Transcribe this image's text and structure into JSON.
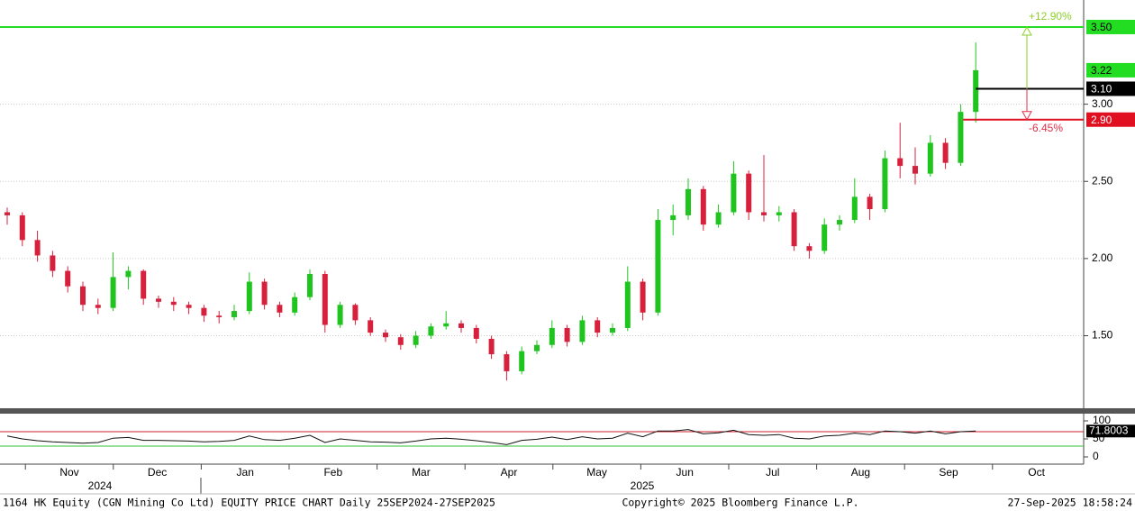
{
  "chart_data": {
    "type": "candlestick",
    "ylim": [
      1.03,
      3.675
    ],
    "yticks": [
      {
        "value": 1.5,
        "label": "1.50"
      },
      {
        "value": 2,
        "label": "2.00"
      },
      {
        "value": 2.5,
        "label": "2.50"
      },
      {
        "value": 3,
        "label": "3.00"
      }
    ],
    "up_color": "#1fc41f",
    "down_color": "#d6203c",
    "candles": [
      [
        2.3,
        2.33,
        2.22,
        2.28
      ],
      [
        2.28,
        2.3,
        2.08,
        2.12
      ],
      [
        2.12,
        2.18,
        1.98,
        2.02
      ],
      [
        2.02,
        2.05,
        1.88,
        1.92
      ],
      [
        1.92,
        1.95,
        1.78,
        1.82
      ],
      [
        1.82,
        1.85,
        1.66,
        1.7
      ],
      [
        1.7,
        1.74,
        1.64,
        1.68
      ],
      [
        1.68,
        2.04,
        1.66,
        1.88
      ],
      [
        1.88,
        1.95,
        1.8,
        1.92
      ],
      [
        1.92,
        1.93,
        1.7,
        1.74
      ],
      [
        1.74,
        1.76,
        1.68,
        1.72
      ],
      [
        1.72,
        1.75,
        1.66,
        1.7
      ],
      [
        1.7,
        1.72,
        1.64,
        1.68
      ],
      [
        1.68,
        1.7,
        1.59,
        1.63
      ],
      [
        1.63,
        1.66,
        1.58,
        1.62
      ],
      [
        1.62,
        1.7,
        1.6,
        1.66
      ],
      [
        1.66,
        1.91,
        1.64,
        1.85
      ],
      [
        1.85,
        1.87,
        1.67,
        1.7
      ],
      [
        1.7,
        1.72,
        1.62,
        1.65
      ],
      [
        1.65,
        1.78,
        1.63,
        1.75
      ],
      [
        1.75,
        1.93,
        1.73,
        1.9
      ],
      [
        1.9,
        1.92,
        1.52,
        1.57
      ],
      [
        1.57,
        1.72,
        1.55,
        1.7
      ],
      [
        1.7,
        1.71,
        1.57,
        1.6
      ],
      [
        1.6,
        1.62,
        1.5,
        1.52
      ],
      [
        1.52,
        1.54,
        1.46,
        1.49
      ],
      [
        1.49,
        1.51,
        1.41,
        1.44
      ],
      [
        1.44,
        1.53,
        1.42,
        1.5
      ],
      [
        1.5,
        1.58,
        1.48,
        1.56
      ],
      [
        1.56,
        1.66,
        1.54,
        1.58
      ],
      [
        1.58,
        1.6,
        1.52,
        1.55
      ],
      [
        1.55,
        1.57,
        1.45,
        1.48
      ],
      [
        1.48,
        1.5,
        1.35,
        1.38
      ],
      [
        1.38,
        1.4,
        1.21,
        1.27
      ],
      [
        1.27,
        1.43,
        1.25,
        1.4
      ],
      [
        1.4,
        1.47,
        1.38,
        1.44
      ],
      [
        1.44,
        1.6,
        1.42,
        1.55
      ],
      [
        1.55,
        1.57,
        1.43,
        1.46
      ],
      [
        1.46,
        1.63,
        1.44,
        1.6
      ],
      [
        1.6,
        1.62,
        1.49,
        1.52
      ],
      [
        1.52,
        1.58,
        1.5,
        1.55
      ],
      [
        1.55,
        1.95,
        1.53,
        1.85
      ],
      [
        1.85,
        1.87,
        1.6,
        1.65
      ],
      [
        1.65,
        2.32,
        1.63,
        2.25
      ],
      [
        2.25,
        2.35,
        2.15,
        2.28
      ],
      [
        2.28,
        2.52,
        2.25,
        2.45
      ],
      [
        2.45,
        2.47,
        2.18,
        2.22
      ],
      [
        2.22,
        2.35,
        2.2,
        2.3
      ],
      [
        2.3,
        2.63,
        2.28,
        2.55
      ],
      [
        2.55,
        2.57,
        2.25,
        2.3
      ],
      [
        2.3,
        2.67,
        2.24,
        2.28
      ],
      [
        2.28,
        2.34,
        2.24,
        2.3
      ],
      [
        2.3,
        2.32,
        2.05,
        2.08
      ],
      [
        2.08,
        2.1,
        2.0,
        2.05
      ],
      [
        2.05,
        2.26,
        2.03,
        2.22
      ],
      [
        2.22,
        2.28,
        2.18,
        2.25
      ],
      [
        2.25,
        2.52,
        2.23,
        2.4
      ],
      [
        2.4,
        2.42,
        2.25,
        2.32
      ],
      [
        2.32,
        2.7,
        2.3,
        2.65
      ],
      [
        2.65,
        2.88,
        2.52,
        2.6
      ],
      [
        2.6,
        2.72,
        2.48,
        2.55
      ],
      [
        2.55,
        2.8,
        2.53,
        2.75
      ],
      [
        2.75,
        2.78,
        2.58,
        2.62
      ],
      [
        2.62,
        3.0,
        2.6,
        2.95
      ],
      [
        2.95,
        3.4,
        2.88,
        3.22
      ]
    ],
    "levels": [
      {
        "value": 3.5,
        "label": "3.50",
        "color": "#22dd22"
      },
      {
        "value": 3.22,
        "label": "3.22",
        "color": "#22dd22"
      },
      {
        "value": 3.1,
        "label": "3.10",
        "color": "#000000"
      },
      {
        "value": 2.9,
        "label": "2.90",
        "color": "#e01020"
      }
    ],
    "annotations": [
      {
        "value": 12.9,
        "label": "+12.90%",
        "color": "#8ccf2a"
      },
      {
        "value": -6.45,
        "label": "-6.45%",
        "color": "#e0304a"
      }
    ],
    "rsi": {
      "ylim": [
        -20,
        117.5
      ],
      "yticks": [
        0,
        50,
        100
      ],
      "bands": [
        {
          "value": 70,
          "color": "#d02030"
        },
        {
          "value": 30,
          "color": "#30c030"
        }
      ],
      "values": [
        58,
        50,
        45,
        42,
        40,
        38,
        40,
        52,
        54,
        46,
        46,
        45,
        44,
        42,
        43,
        46,
        58,
        48,
        46,
        52,
        60,
        40,
        50,
        46,
        42,
        41,
        39,
        44,
        50,
        52,
        49,
        45,
        40,
        34,
        46,
        49,
        55,
        48,
        56,
        50,
        52,
        66,
        56,
        72,
        72,
        76,
        64,
        67,
        74,
        62,
        60,
        62,
        52,
        50,
        58,
        60,
        66,
        62,
        72,
        70,
        66,
        72,
        64,
        70,
        71.8003
      ],
      "value_labels": "71.8003"
    },
    "xticks": [
      "Nov",
      "Dec",
      "Jan",
      "Feb",
      "Mar",
      "Apr",
      "May",
      "Jun",
      "Jul",
      "Aug",
      "Sep",
      "Oct"
    ],
    "years": [
      "2024",
      "2025"
    ],
    "footer": {
      "left": "1164 HK Equity (CGN Mining Co Ltd) EQUITY PRICE CHART  Daily 25SEP2024-27SEP2025",
      "center": "Copyright© 2025 Bloomberg Finance L.P.",
      "right": "27-Sep-2025 18:58:24"
    }
  }
}
